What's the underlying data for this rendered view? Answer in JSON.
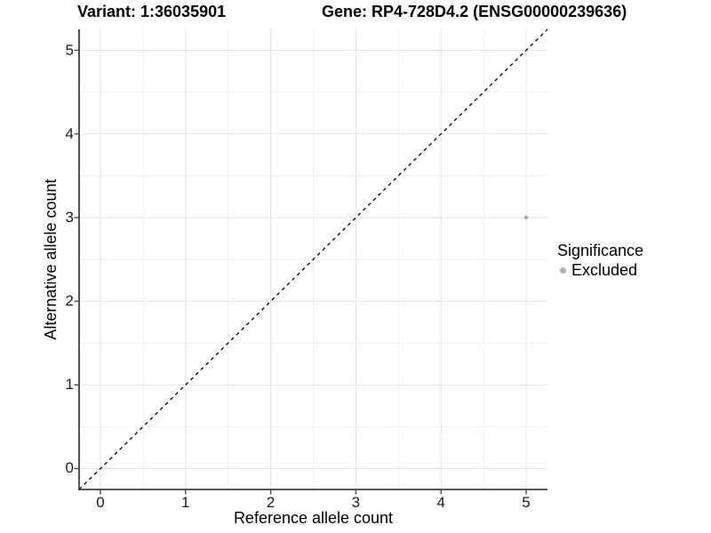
{
  "chart_data": {
    "type": "scatter",
    "titles": {
      "variant": "Variant: 1:36035901",
      "gene": "Gene: RP4-728D4.2 (ENSG00000239636)"
    },
    "xlabel": "Reference allele count",
    "ylabel": "Alternative allele count",
    "x_ticks": [
      0,
      1,
      2,
      3,
      4,
      5
    ],
    "y_ticks": [
      0,
      1,
      2,
      3,
      4,
      5
    ],
    "xlim": [
      -0.25,
      5.25
    ],
    "ylim": [
      -0.25,
      5.25
    ],
    "grid": {
      "on": true,
      "major_every": 1,
      "minor_every": 0.5
    },
    "reference_line": {
      "kind": "identity",
      "slope": 1,
      "intercept": 0,
      "style": "dashed",
      "color": "#000000"
    },
    "series": [
      {
        "name": "Excluded",
        "color": "#b0b0b0",
        "points": [
          [
            5,
            3
          ]
        ]
      }
    ],
    "legend": {
      "title": "Significance",
      "position": "right",
      "items": [
        {
          "label": "Excluded",
          "color": "#b0b0b0",
          "marker": "circle"
        }
      ]
    }
  },
  "colors": {
    "background": "#ffffff",
    "grid_major": "#e3e3e3",
    "grid_minor": "#efefef",
    "axis_line": "#404040",
    "tick_mark": "#4a4a4a",
    "text": "#1a1a1a",
    "point": "#b0b0b0"
  }
}
